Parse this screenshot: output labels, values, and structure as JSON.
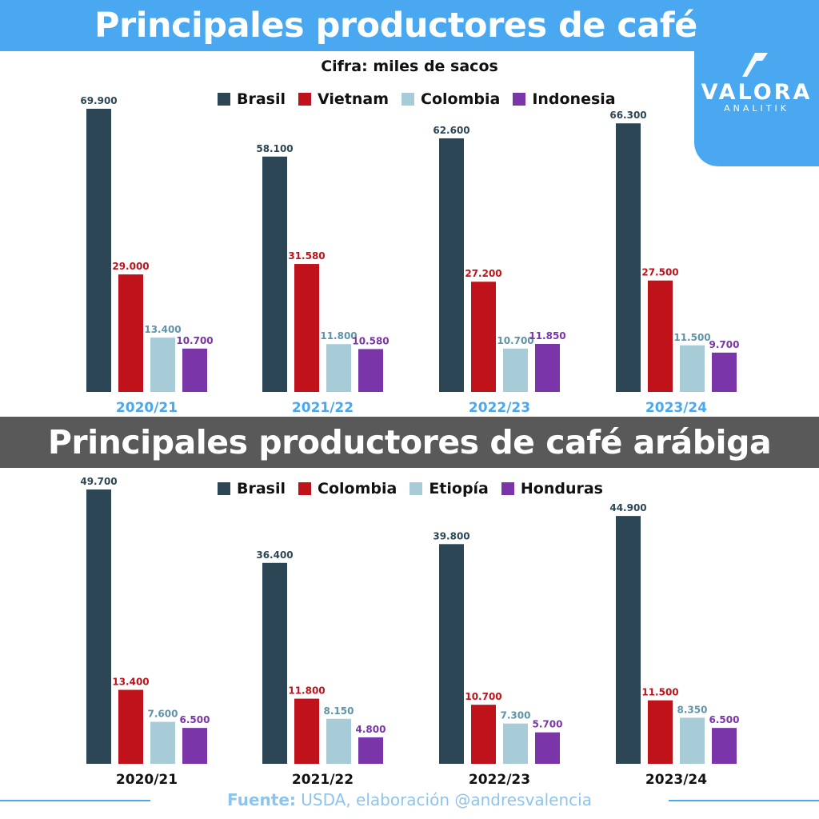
{
  "header": {
    "title": "Principales productores de café",
    "subtitle": "Cifra: miles de sacos"
  },
  "logo": {
    "name": "VALORA",
    "sub": "ANALITIK"
  },
  "section2": {
    "title": "Principales productores de café arábiga"
  },
  "footer": {
    "label": "Fuente:",
    "text": " USDA, elaboración @andresvalencia"
  },
  "colors": {
    "brasil": "#2c4655",
    "red": "#c0121a",
    "lightblue": "#a8cbd8",
    "purple": "#7a35a8",
    "accent": "#4aa8f0",
    "dark_banner": "#595959"
  },
  "chart_data": [
    {
      "type": "bar",
      "title": "Principales productores de café",
      "subtitle": "Cifra: miles de sacos",
      "categories": [
        "2020/21",
        "2021/22",
        "2022/23",
        "2023/24"
      ],
      "series": [
        {
          "name": "Brasil",
          "values": [
            69900,
            58100,
            62600,
            66300
          ],
          "labels": [
            "69.900",
            "58.100",
            "62.600",
            "66.300"
          ],
          "color": "#2c4655"
        },
        {
          "name": "Vietnam",
          "values": [
            29000,
            31580,
            27200,
            27500
          ],
          "labels": [
            "29.000",
            "31.580",
            "27.200",
            "27.500"
          ],
          "color": "#c0121a"
        },
        {
          "name": "Colombia",
          "values": [
            13400,
            11800,
            10700,
            11500
          ],
          "labels": [
            "13.400",
            "11.800",
            "10.700",
            "11.500"
          ],
          "color": "#a8cbd8"
        },
        {
          "name": "Indonesia",
          "values": [
            10700,
            10580,
            11850,
            9700
          ],
          "labels": [
            "10.700",
            "10.580",
            "11.850",
            "9.700"
          ],
          "color": "#7a35a8"
        }
      ],
      "category_label_color": "#4aa8f0",
      "ylim": [
        0,
        69900
      ]
    },
    {
      "type": "bar",
      "title": "Principales productores de café arábiga",
      "categories": [
        "2020/21",
        "2021/22",
        "2022/23",
        "2023/24"
      ],
      "series": [
        {
          "name": "Brasil",
          "values": [
            49700,
            36400,
            39800,
            44900
          ],
          "labels": [
            "49.700",
            "36.400",
            "39.800",
            "44.900"
          ],
          "color": "#2c4655"
        },
        {
          "name": "Colombia",
          "values": [
            13400,
            11800,
            10700,
            11500
          ],
          "labels": [
            "13.400",
            "11.800",
            "10.700",
            "11.500"
          ],
          "color": "#c0121a"
        },
        {
          "name": "Etiopía",
          "values": [
            7600,
            8150,
            7300,
            8350
          ],
          "labels": [
            "7.600",
            "8.150",
            "7.300",
            "8.350"
          ],
          "color": "#a8cbd8"
        },
        {
          "name": "Honduras",
          "values": [
            6500,
            4800,
            5700,
            6500
          ],
          "labels": [
            "6.500",
            "4.800",
            "5.700",
            "6.500"
          ],
          "color": "#7a35a8"
        }
      ],
      "category_label_color": "#111111",
      "ylim": [
        0,
        49700
      ]
    }
  ]
}
